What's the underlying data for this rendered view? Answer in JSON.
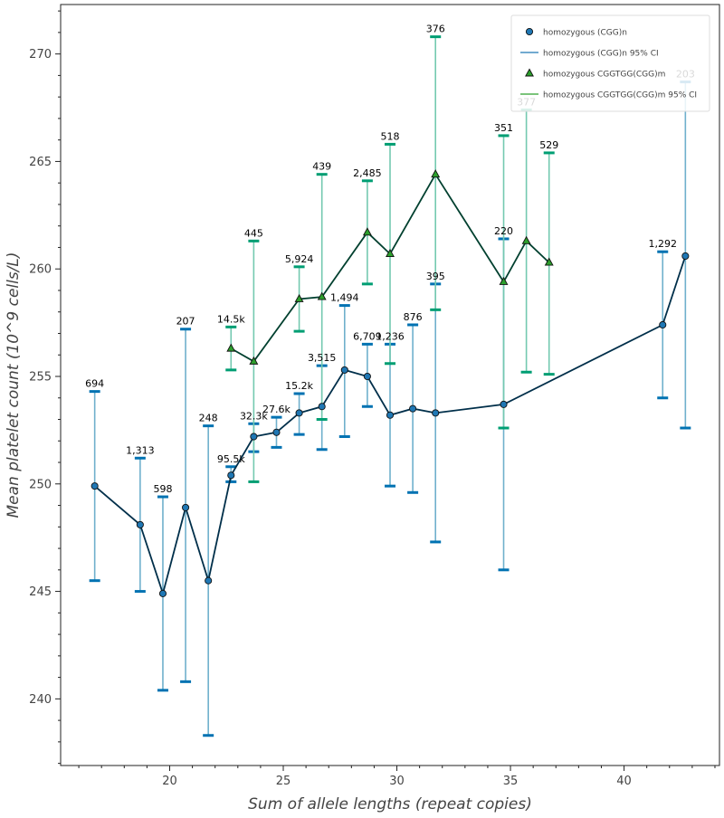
{
  "chart_data": {
    "type": "line",
    "title": "",
    "xlabel": "Sum of allele lengths (repeat copies)",
    "ylabel": "Mean platelet count (10^9 cells/L)",
    "xlim": [
      15.2,
      44.2
    ],
    "ylim": [
      236.9,
      272.3
    ],
    "x_ticks": [
      20,
      25,
      30,
      35,
      40
    ],
    "y_ticks": [
      240,
      245,
      250,
      255,
      260,
      265,
      270
    ],
    "grid": false,
    "legend_position": "top-right",
    "colors": {
      "series1_marker": "#1f77b4",
      "series1_line": "#002f4a",
      "series1_ci": "#6fb0cc",
      "series1_cap": "#0072b2",
      "series2_marker": "#2ca02c",
      "series2_line": "#00402f",
      "series2_ci": "#74c9b0",
      "series2_cap": "#009e73"
    },
    "legend": [
      {
        "label": "homozygous (CGG)n",
        "kind": "marker",
        "marker": "circle",
        "color": "#1f77b4"
      },
      {
        "label": "homozygous (CGG)n 95% CI",
        "kind": "line",
        "color": "#1f77b4"
      },
      {
        "label": "homozygous CGGTGG(CGG)m",
        "kind": "marker",
        "marker": "triangle",
        "color": "#2ca02c"
      },
      {
        "label": "homozygous CGGTGG(CGG)m 95% CI",
        "kind": "line",
        "color": "#2ca02c"
      }
    ],
    "series": [
      {
        "name": "homozygous (CGG)n",
        "marker": "circle",
        "points": [
          {
            "x": 16.7,
            "y": 249.9,
            "lo": 245.5,
            "hi": 254.3,
            "n": "694"
          },
          {
            "x": 18.7,
            "y": 248.1,
            "lo": 245.0,
            "hi": 251.2,
            "n": "1,313"
          },
          {
            "x": 19.7,
            "y": 244.9,
            "lo": 240.4,
            "hi": 249.4,
            "n": "598"
          },
          {
            "x": 20.7,
            "y": 248.9,
            "lo": 240.8,
            "hi": 257.2,
            "n": "207"
          },
          {
            "x": 21.7,
            "y": 245.5,
            "lo": 238.3,
            "hi": 252.7,
            "n": "248"
          },
          {
            "x": 22.7,
            "y": 250.4,
            "lo": 250.1,
            "hi": 250.8,
            "n": "95.5k"
          },
          {
            "x": 23.7,
            "y": 252.2,
            "lo": 251.5,
            "hi": 252.8,
            "n": "32.3k"
          },
          {
            "x": 24.7,
            "y": 252.4,
            "lo": 251.7,
            "hi": 253.1,
            "n": "27.6k"
          },
          {
            "x": 25.7,
            "y": 253.3,
            "lo": 252.3,
            "hi": 254.2,
            "n": "15.2k"
          },
          {
            "x": 26.7,
            "y": 253.6,
            "lo": 251.6,
            "hi": 255.5,
            "n": "3,515"
          },
          {
            "x": 27.7,
            "y": 255.3,
            "lo": 252.2,
            "hi": 258.3,
            "n": "1,494"
          },
          {
            "x": 28.7,
            "y": 255.0,
            "lo": 253.6,
            "hi": 256.5,
            "n": "6,709"
          },
          {
            "x": 29.7,
            "y": 253.2,
            "lo": 249.9,
            "hi": 256.5,
            "n": "1,236"
          },
          {
            "x": 30.7,
            "y": 253.5,
            "lo": 249.6,
            "hi": 257.4,
            "n": "876"
          },
          {
            "x": 31.7,
            "y": 253.3,
            "lo": 247.3,
            "hi": 259.3,
            "n": "395"
          },
          {
            "x": 34.7,
            "y": 253.7,
            "lo": 246.0,
            "hi": 261.4,
            "n": "220"
          },
          {
            "x": 41.7,
            "y": 257.4,
            "lo": 254.0,
            "hi": 260.8,
            "n": "1,292"
          },
          {
            "x": 42.7,
            "y": 260.6,
            "lo": 252.6,
            "hi": 268.7,
            "n": "203"
          }
        ]
      },
      {
        "name": "homozygous CGGTGG(CGG)m",
        "marker": "triangle",
        "points": [
          {
            "x": 22.7,
            "y": 256.3,
            "lo": 255.3,
            "hi": 257.3,
            "n": "14.5k"
          },
          {
            "x": 23.7,
            "y": 255.7,
            "lo": 250.1,
            "hi": 261.3,
            "n": "445"
          },
          {
            "x": 25.7,
            "y": 258.6,
            "lo": 257.1,
            "hi": 260.1,
            "n": "5,924"
          },
          {
            "x": 26.7,
            "y": 258.7,
            "lo": 253.0,
            "hi": 264.4,
            "n": "439"
          },
          {
            "x": 28.7,
            "y": 261.7,
            "lo": 259.3,
            "hi": 264.1,
            "n": "2,485"
          },
          {
            "x": 29.7,
            "y": 260.7,
            "lo": 255.6,
            "hi": 265.8,
            "n": "518"
          },
          {
            "x": 31.7,
            "y": 264.4,
            "lo": 258.1,
            "hi": 270.8,
            "n": "376"
          },
          {
            "x": 34.7,
            "y": 259.4,
            "lo": 252.6,
            "hi": 266.2,
            "n": "351"
          },
          {
            "x": 35.7,
            "y": 261.3,
            "lo": 255.2,
            "hi": 267.4,
            "n": "377"
          },
          {
            "x": 36.7,
            "y": 260.3,
            "lo": 255.1,
            "hi": 265.4,
            "n": "529"
          }
        ]
      }
    ]
  }
}
